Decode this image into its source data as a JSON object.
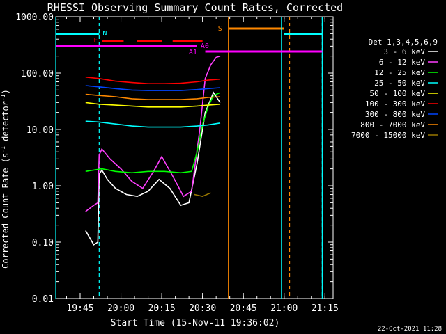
{
  "page": {
    "title": "RHESSI Observing Summary Count Rates, Corrected",
    "timestamp": "22-Oct-2021 11:28"
  },
  "chart_data": {
    "type": "line",
    "title": "RHESSI Observing Summary Count Rates, Corrected",
    "xlabel": "Start Time (15-Nov-11 19:36:02)",
    "ylabel": "Corrected Count Rate (s⁻¹ detector⁻¹)",
    "ylabel_main": "Corrected Count Rate (s",
    "ylabel_mid": " detector",
    "ylabel_end": ")",
    "ylabel_sup": "-1",
    "y_scale": "log",
    "ylim": [
      0.01,
      1000
    ],
    "xlim": [
      "19:36:02",
      "21:18:00"
    ],
    "y_ticks": [
      {
        "value": 1000,
        "label": "1000.00"
      },
      {
        "value": 100,
        "label": "100.00"
      },
      {
        "value": 10,
        "label": "10.00"
      },
      {
        "value": 1,
        "label": "1.00"
      },
      {
        "value": 0.1,
        "label": "0.10"
      },
      {
        "value": 0.01,
        "label": "0.01"
      }
    ],
    "x_ticks": [
      "19:45",
      "20:00",
      "20:15",
      "20:30",
      "20:45",
      "21:00",
      "21:15"
    ],
    "legend": {
      "header": "Det 1,3,4,5,6,9",
      "placement": "right"
    },
    "series": [
      {
        "name": "3 - 6 keV",
        "color": "#ffffff",
        "x": [
          "19:47:00",
          "19:50:00",
          "19:51:30",
          "19:52:00",
          "19:53:00",
          "19:55:00",
          "19:58:00",
          "20:02:00",
          "20:06:00",
          "20:10:00",
          "20:14:00",
          "20:18:00",
          "20:22:00",
          "20:25:00",
          "20:28:00",
          "20:31:00",
          "20:34:00",
          "20:36:30"
        ],
        "values": [
          0.16,
          0.09,
          0.1,
          1.6,
          1.9,
          1.3,
          0.9,
          0.7,
          0.65,
          0.8,
          1.3,
          0.9,
          0.45,
          0.5,
          2.5,
          20,
          45,
          30
        ]
      },
      {
        "name": "6 - 12 keV",
        "color": "#ff3fff",
        "x": [
          "19:47:00",
          "19:50:00",
          "19:51:30",
          "19:52:00",
          "19:53:00",
          "19:56:00",
          "20:00:00",
          "20:04:00",
          "20:08:00",
          "20:12:00",
          "20:15:00",
          "20:19:00",
          "20:23:00",
          "20:26:00",
          "20:29:00",
          "20:31:00",
          "20:33:00",
          "20:35:00",
          "20:36:30"
        ],
        "values": [
          0.35,
          0.45,
          0.5,
          3.5,
          4.5,
          3.0,
          2.0,
          1.2,
          0.9,
          1.8,
          3.3,
          1.5,
          0.65,
          0.8,
          10,
          80,
          140,
          190,
          200
        ]
      },
      {
        "name": "12 - 25 keV",
        "color": "#00ff00",
        "x": [
          "19:47:00",
          "19:50:00",
          "19:53:00",
          "19:58:00",
          "20:04:00",
          "20:10:00",
          "20:16:00",
          "20:22:00",
          "20:26:00",
          "20:28:00",
          "20:30:00",
          "20:32:00",
          "20:34:00",
          "20:36:30"
        ],
        "values": [
          1.8,
          1.9,
          2.0,
          1.8,
          1.7,
          1.8,
          1.8,
          1.7,
          1.8,
          4,
          12,
          25,
          40,
          45
        ]
      },
      {
        "name": "25 - 50 keV",
        "color": "#00ffff",
        "x": [
          "19:47:00",
          "19:52:00",
          "19:58:00",
          "20:04:00",
          "20:10:00",
          "20:16:00",
          "20:22:00",
          "20:28:00",
          "20:32:00",
          "20:36:30"
        ],
        "values": [
          14,
          13.5,
          12.5,
          11.5,
          11,
          11,
          11,
          11.5,
          12,
          13
        ]
      },
      {
        "name": "50 - 100 keV",
        "color": "#ffff00",
        "x": [
          "19:47:00",
          "19:52:00",
          "19:58:00",
          "20:04:00",
          "20:10:00",
          "20:16:00",
          "20:22:00",
          "20:28:00",
          "20:32:00",
          "20:36:30"
        ],
        "values": [
          30,
          28,
          27,
          26,
          25,
          25,
          25,
          26,
          27,
          28
        ]
      },
      {
        "name": "100 - 300 keV",
        "color": "#ff0000",
        "x": [
          "19:47:00",
          "19:52:00",
          "19:58:00",
          "20:04:00",
          "20:10:00",
          "20:16:00",
          "20:22:00",
          "20:28:00",
          "20:32:00",
          "20:36:30"
        ],
        "values": [
          85,
          80,
          72,
          68,
          65,
          65,
          66,
          70,
          75,
          78
        ]
      },
      {
        "name": "300 - 800 keV",
        "color": "#0044ff",
        "x": [
          "19:47:00",
          "19:52:00",
          "19:58:00",
          "20:04:00",
          "20:10:00",
          "20:16:00",
          "20:22:00",
          "20:28:00",
          "20:32:00",
          "20:36:30"
        ],
        "values": [
          60,
          57,
          53,
          50,
          49,
          49,
          49,
          51,
          53,
          55
        ]
      },
      {
        "name": "800 - 7000 keV",
        "color": "#ff8800",
        "x": [
          "19:47:00",
          "19:52:00",
          "19:58:00",
          "20:04:00",
          "20:10:00",
          "20:16:00",
          "20:22:00",
          "20:28:00",
          "20:32:00",
          "20:36:30"
        ],
        "values": [
          42,
          40,
          38,
          35,
          34,
          34,
          34,
          35,
          37,
          38
        ]
      },
      {
        "name": "7000 - 15000 keV",
        "color": "#997700",
        "x": [
          "20:27:00",
          "20:30:00",
          "20:33:00"
        ],
        "values": [
          0.7,
          0.65,
          0.75
        ]
      }
    ],
    "annotations": {
      "night": {
        "label": "N",
        "color": "#00ffff",
        "segments": [
          [
            "19:36:02",
            "19:52:00"
          ],
          [
            "21:00:00",
            "21:14:00"
          ]
        ],
        "lines": [
          "19:36:02",
          "21:14:00"
        ],
        "dashed_lines": [
          "19:52:00",
          "21:14:00"
        ]
      },
      "flare": {
        "label": "F",
        "color": "#ff0000",
        "segments": [
          [
            "19:53:00",
            "20:01:00"
          ],
          [
            "20:06:00",
            "20:15:00"
          ],
          [
            "20:19:00",
            "20:30:00"
          ]
        ]
      },
      "saa": {
        "label": "S",
        "color": "#ff8800",
        "segment": [
          "20:39:30",
          "21:00:00"
        ],
        "line": "20:39:30",
        "dashed_line": "21:02:00"
      },
      "attenuator": {
        "label": "A1",
        "color": "#ff00ff",
        "segments": [
          [
            "19:36:02",
            "20:28:00"
          ],
          [
            "20:31:00",
            "21:14:00"
          ]
        ]
      },
      "decimation": {
        "label": "A0",
        "color": "#ff00ff"
      },
      "cyan_line": {
        "color": "#00ffff",
        "line": "20:59:00"
      }
    }
  }
}
